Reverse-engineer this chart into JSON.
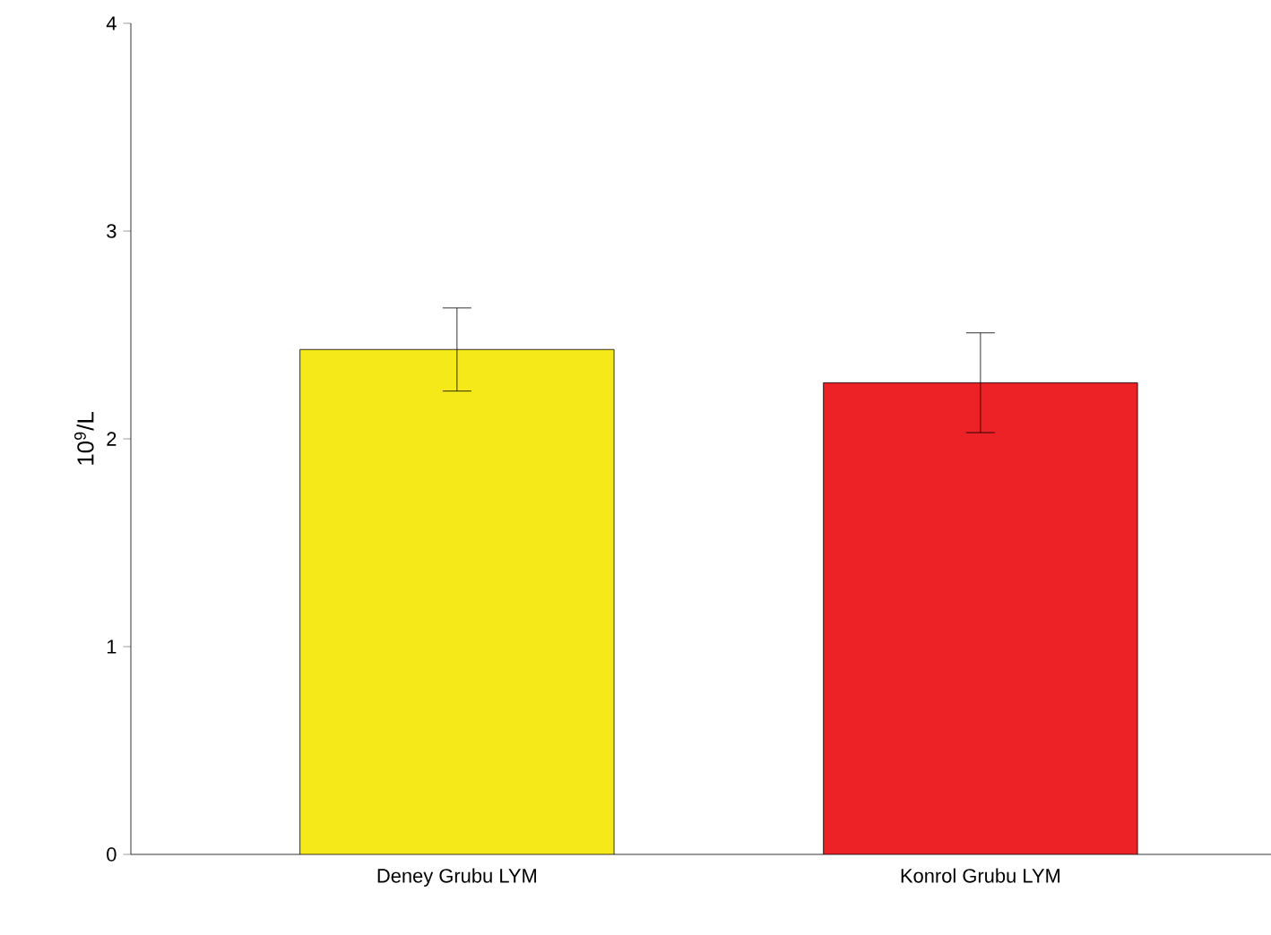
{
  "chart_data": {
    "type": "bar",
    "ylabel": "10$^{9}$/L",
    "categories": [
      "Deney Grubu LYM",
      "Konrol Grubu LYM"
    ],
    "values": [
      2.43,
      2.27
    ],
    "errors": [
      0.2,
      0.24
    ],
    "colors": [
      "#f5e919",
      "#ec2227"
    ],
    "ylim": [
      0,
      4
    ],
    "yticks": [
      0,
      1,
      2,
      3,
      4
    ]
  }
}
